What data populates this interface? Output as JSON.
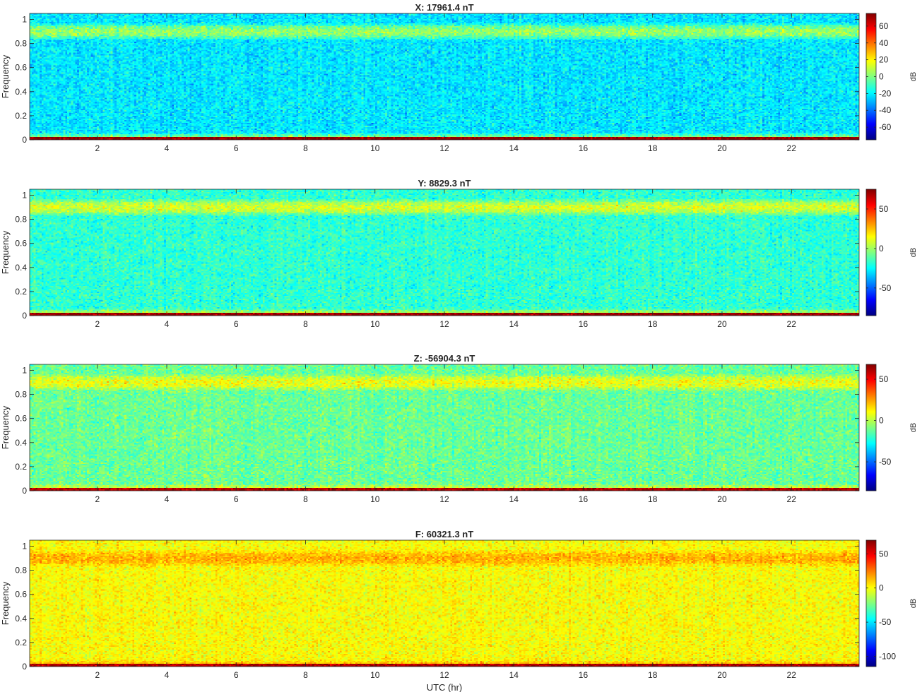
{
  "chart_data": [
    {
      "type": "heatmap",
      "title": "X: 17961.4 nT",
      "ylabel": "Frequency",
      "xlabel": "",
      "xlim": [
        0.05,
        23.95
      ],
      "ylim": [
        0,
        1.05
      ],
      "xticks": [
        2,
        4,
        6,
        8,
        10,
        12,
        14,
        16,
        18,
        20,
        22
      ],
      "yticks": [
        0,
        0.2,
        0.4,
        0.6,
        0.8,
        1
      ],
      "colorbar": {
        "label": "dB",
        "range": [
          -75,
          75
        ],
        "ticks": [
          -60,
          -40,
          -20,
          0,
          20,
          40,
          60
        ]
      },
      "bands": {
        "background_db": -22,
        "band_db": 4,
        "band_freq_range": [
          0.85,
          0.95
        ],
        "low_freq_db": 72,
        "low_freq_max": 0.02
      }
    },
    {
      "type": "heatmap",
      "title": "Y: 8829.3 nT",
      "ylabel": "Frequency",
      "xlabel": "",
      "xlim": [
        0.05,
        23.95
      ],
      "ylim": [
        0,
        1.05
      ],
      "xticks": [
        2,
        4,
        6,
        8,
        10,
        12,
        14,
        16,
        18,
        20,
        22
      ],
      "yticks": [
        0,
        0.2,
        0.4,
        0.6,
        0.8,
        1
      ],
      "colorbar": {
        "label": "dB",
        "range": [
          -85,
          75
        ],
        "ticks": [
          -50,
          0,
          50
        ]
      },
      "bands": {
        "background_db": -18,
        "band_db": 8,
        "band_freq_range": [
          0.85,
          0.95
        ],
        "low_freq_db": 72,
        "low_freq_max": 0.02
      }
    },
    {
      "type": "heatmap",
      "title": "Z: -56904.3 nT",
      "ylabel": "Frequency",
      "xlabel": "",
      "xlim": [
        0.05,
        23.95
      ],
      "ylim": [
        0,
        1.05
      ],
      "xticks": [
        2,
        4,
        6,
        8,
        10,
        12,
        14,
        16,
        18,
        20,
        22
      ],
      "yticks": [
        0,
        0.2,
        0.4,
        0.6,
        0.8,
        1
      ],
      "colorbar": {
        "label": "dB",
        "range": [
          -85,
          68
        ],
        "ticks": [
          -50,
          0,
          50
        ]
      },
      "bands": {
        "background_db": -12,
        "band_db": 8,
        "band_freq_range": [
          0.85,
          0.95
        ],
        "low_freq_db": 60,
        "low_freq_max": 0.02
      }
    },
    {
      "type": "heatmap",
      "title": "F: 60321.3 nT",
      "ylabel": "Frequency",
      "xlabel": "UTC (hr)",
      "xlim": [
        0.05,
        23.95
      ],
      "ylim": [
        0,
        1.05
      ],
      "xticks": [
        2,
        4,
        6,
        8,
        10,
        12,
        14,
        16,
        18,
        20,
        22
      ],
      "yticks": [
        0,
        0.2,
        0.4,
        0.6,
        0.8,
        1
      ],
      "colorbar": {
        "label": "dB",
        "range": [
          -115,
          70
        ],
        "ticks": [
          -100,
          -50,
          0,
          50
        ]
      },
      "bands": {
        "background_db": 0,
        "band_db": 15,
        "band_freq_range": [
          0.85,
          0.95
        ],
        "low_freq_db": 62,
        "low_freq_max": 0.02
      }
    }
  ]
}
